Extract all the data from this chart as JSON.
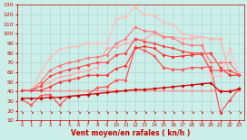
{
  "xlabel": "Vent moyen/en rafales ( kn/h )",
  "bg_color": "#cceee8",
  "grid_color": "#b0d8d4",
  "x": [
    0,
    1,
    2,
    3,
    4,
    5,
    6,
    7,
    8,
    9,
    10,
    11,
    12,
    13,
    14,
    15,
    16,
    17,
    18,
    19,
    20,
    21,
    22,
    23
  ],
  "ylim": [
    10,
    130
  ],
  "yticks": [
    10,
    20,
    30,
    40,
    50,
    60,
    70,
    80,
    90,
    100,
    110,
    120,
    130
  ],
  "series": [
    {
      "color": "#ff9999",
      "lw": 0.8,
      "marker": "D",
      "ms": 1.8,
      "y": [
        41,
        41,
        41,
        41,
        41,
        41,
        41,
        41,
        41,
        41,
        41,
        41,
        41,
        41,
        41,
        41,
        41,
        41,
        41,
        41,
        41,
        41,
        41,
        41
      ]
    },
    {
      "color": "#ffaaaa",
      "lw": 0.8,
      "marker": "D",
      "ms": 1.8,
      "y": [
        41,
        41,
        45,
        50,
        55,
        57,
        60,
        62,
        65,
        85,
        86,
        90,
        93,
        95,
        100,
        97,
        97,
        95,
        95,
        97,
        95,
        95,
        57,
        57
      ]
    },
    {
      "color": "#ff5555",
      "lw": 0.9,
      "marker": "D",
      "ms": 1.8,
      "y": [
        32,
        26,
        36,
        37,
        26,
        35,
        36,
        37,
        44,
        45,
        52,
        52,
        86,
        83,
        77,
        65,
        63,
        63,
        65,
        65,
        66,
        18,
        31,
        43
      ]
    },
    {
      "color": "#cc0000",
      "lw": 0.9,
      "marker": "D",
      "ms": 1.8,
      "y": [
        33,
        33,
        33,
        34,
        34,
        35,
        36,
        37,
        38,
        39,
        40,
        41,
        42,
        42,
        43,
        44,
        45,
        46,
        47,
        48,
        49,
        40,
        40,
        43
      ]
    },
    {
      "color": "#ff3333",
      "lw": 0.8,
      "marker": "D",
      "ms": 1.8,
      "y": [
        41,
        41,
        41,
        45,
        50,
        52,
        54,
        57,
        57,
        57,
        64,
        67,
        85,
        87,
        85,
        78,
        76,
        77,
        78,
        79,
        80,
        65,
        57,
        57
      ]
    },
    {
      "color": "#ffbbbb",
      "lw": 0.8,
      "marker": "D",
      "ms": 1.8,
      "y": [
        41,
        41,
        60,
        75,
        84,
        86,
        87,
        90,
        90,
        90,
        115,
        118,
        128,
        120,
        119,
        112,
        110,
        100,
        98,
        97,
        56,
        56,
        85,
        57
      ]
    },
    {
      "color": "#ff7777",
      "lw": 0.8,
      "marker": "D",
      "ms": 1.8,
      "y": [
        41,
        41,
        50,
        62,
        67,
        70,
        72,
        75,
        76,
        78,
        90,
        95,
        107,
        103,
        102,
        97,
        96,
        90,
        88,
        88,
        70,
        70,
        70,
        57
      ]
    },
    {
      "color": "#ff4444",
      "lw": 0.8,
      "marker": "D",
      "ms": 1.8,
      "y": [
        41,
        41,
        46,
        56,
        60,
        63,
        65,
        68,
        70,
        70,
        78,
        80,
        95,
        92,
        90,
        87,
        85,
        82,
        80,
        80,
        62,
        62,
        62,
        57
      ]
    }
  ],
  "arrow_color": "#cc0000",
  "tick_label_color": "#cc0000",
  "xlabel_color": "#cc0000",
  "spine_color": "#cc0000"
}
